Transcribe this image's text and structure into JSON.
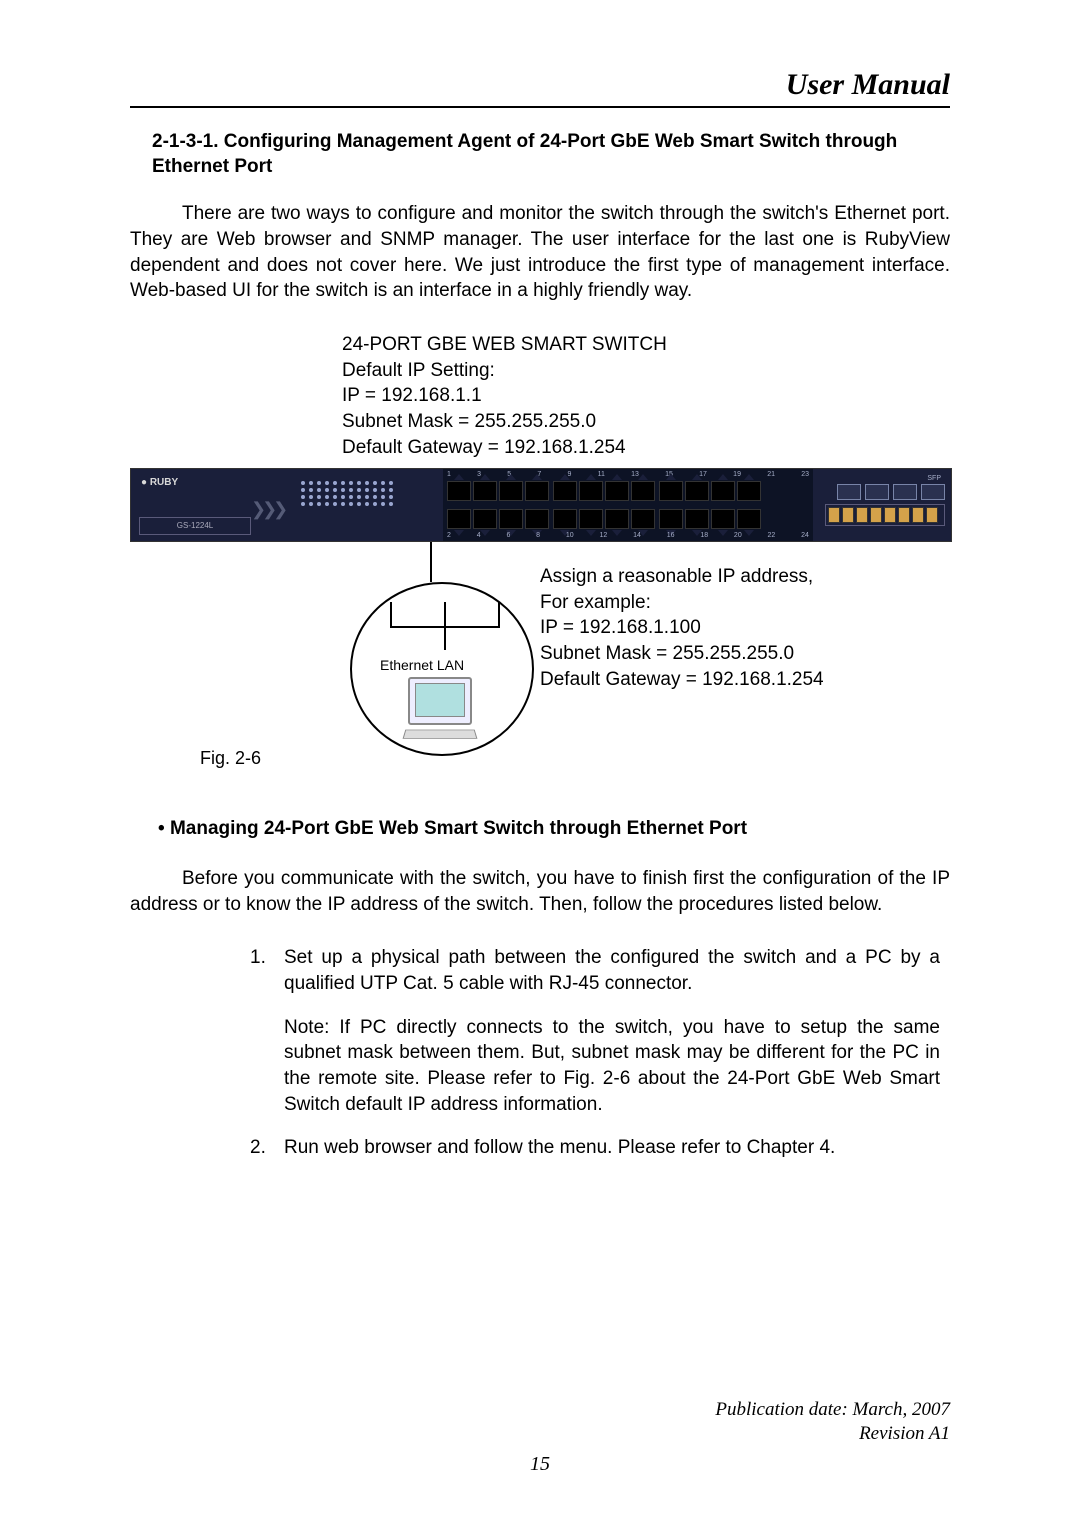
{
  "header": {
    "title": "User Manual"
  },
  "section": {
    "number_title": "2-1-3-1. Configuring Management Agent of 24-Port GbE Web Smart Switch through Ethernet Port",
    "para1": "There are two ways to configure and monitor the switch through the switch's Ethernet port. They are Web browser and SNMP manager. The user interface for the last one is RubyView dependent and does not cover here. We just introduce the first type of management interface. Web-based UI for the switch is an interface in a highly friendly way."
  },
  "default_ip": {
    "l1": "24-PORT GBE WEB SMART SWITCH",
    "l2": "Default IP Setting:",
    "l3": "IP = 192.168.1.1",
    "l4": "Subnet Mask = 255.255.255.0",
    "l5": "Default Gateway = 192.168.1.254"
  },
  "switch": {
    "brand": "● RUBY",
    "model": "GS-1224L",
    "sfp_label": "SFP",
    "top_nums": [
      "1",
      "3",
      "5",
      "7",
      "9",
      "11",
      "13",
      "15",
      "17",
      "19",
      "21",
      "23"
    ],
    "bot_nums": [
      "2",
      "4",
      "6",
      "8",
      "10",
      "12",
      "14",
      "16",
      "18",
      "20",
      "22",
      "24"
    ]
  },
  "lan": {
    "label": "Ethernet LAN",
    "fig": "Fig. 2-6"
  },
  "assign": {
    "l1": "Assign a reasonable IP address,",
    "l2": "For example:",
    "l3": "IP = 192.168.1.100",
    "l4": "Subnet Mask = 255.255.255.0",
    "l5": "Default Gateway = 192.168.1.254"
  },
  "managing": {
    "heading": "Managing 24-Port GbE Web Smart Switch through Ethernet Port",
    "para": "Before you communicate with the switch, you have to finish first the configuration of the IP address or to know the IP address of the switch. Then, follow the procedures listed below.",
    "item1_num": "1.",
    "item1": "Set up a physical path between the configured the switch and a PC by a qualified UTP Cat. 5 cable with RJ-45 connector.",
    "note": "Note: If PC directly connects to the switch, you have to setup the same subnet mask between them. But, subnet mask may be different for the PC in the remote site. Please refer to Fig. 2-6 about the 24-Port GbE Web Smart Switch default IP address information.",
    "item2_num": "2.",
    "item2": "Run web browser and follow the menu. Please refer to Chapter 4."
  },
  "footer": {
    "pub": "Publication date: March, 2007",
    "rev": "Revision A1",
    "page": "15"
  },
  "colors": {
    "switch_bg": "#1a1f3a",
    "port_bg": "#0d1325"
  }
}
